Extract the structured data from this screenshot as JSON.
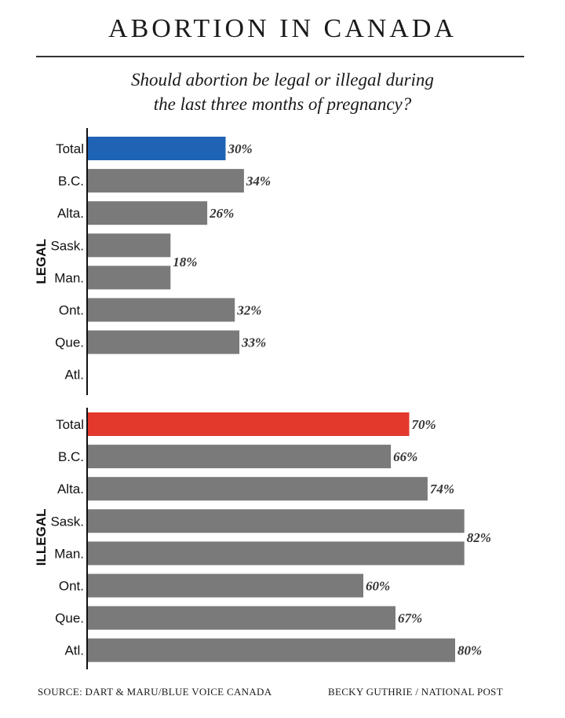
{
  "title": "ABORTION IN CANADA",
  "subtitle_line1": "Should abortion be legal or illegal during",
  "subtitle_line2": "the last three months of pregnancy?",
  "footer": {
    "source": "SOURCE: DART & MARU/BLUE VOICE CANADA",
    "credit": "BECKY GUTHRIE  / NATIONAL POST"
  },
  "colors": {
    "legal_total": "#1f63b5",
    "illegal_total": "#e2392c",
    "province": "#7a7a7a"
  },
  "chart_data": [
    {
      "type": "bar",
      "group_label": "LEGAL",
      "categories": [
        "Total",
        "B.C.",
        "Alta.",
        "Sask.",
        "Man.",
        "Ont.",
        "Que.",
        "Atl."
      ],
      "values": [
        30,
        34,
        26,
        18,
        18,
        32,
        33,
        null
      ],
      "labels": [
        "30%",
        "34%",
        "26%",
        "18%",
        "18%",
        "32%",
        "33%",
        ""
      ],
      "merged_label": {
        "categories": [
          "Sask.",
          "Man."
        ],
        "text": "18%"
      },
      "unit": "%"
    },
    {
      "type": "bar",
      "group_label": "ILLEGAL",
      "categories": [
        "Total",
        "B.C.",
        "Alta.",
        "Sask.",
        "Man.",
        "Ont.",
        "Que.",
        "Atl."
      ],
      "values": [
        70,
        66,
        74,
        82,
        82,
        60,
        67,
        80
      ],
      "labels": [
        "70%",
        "66%",
        "74%",
        "82%",
        "82%",
        "60%",
        "67%",
        "80%"
      ],
      "merged_label": {
        "categories": [
          "Sask.",
          "Man."
        ],
        "text": "82%"
      },
      "unit": "%"
    }
  ]
}
